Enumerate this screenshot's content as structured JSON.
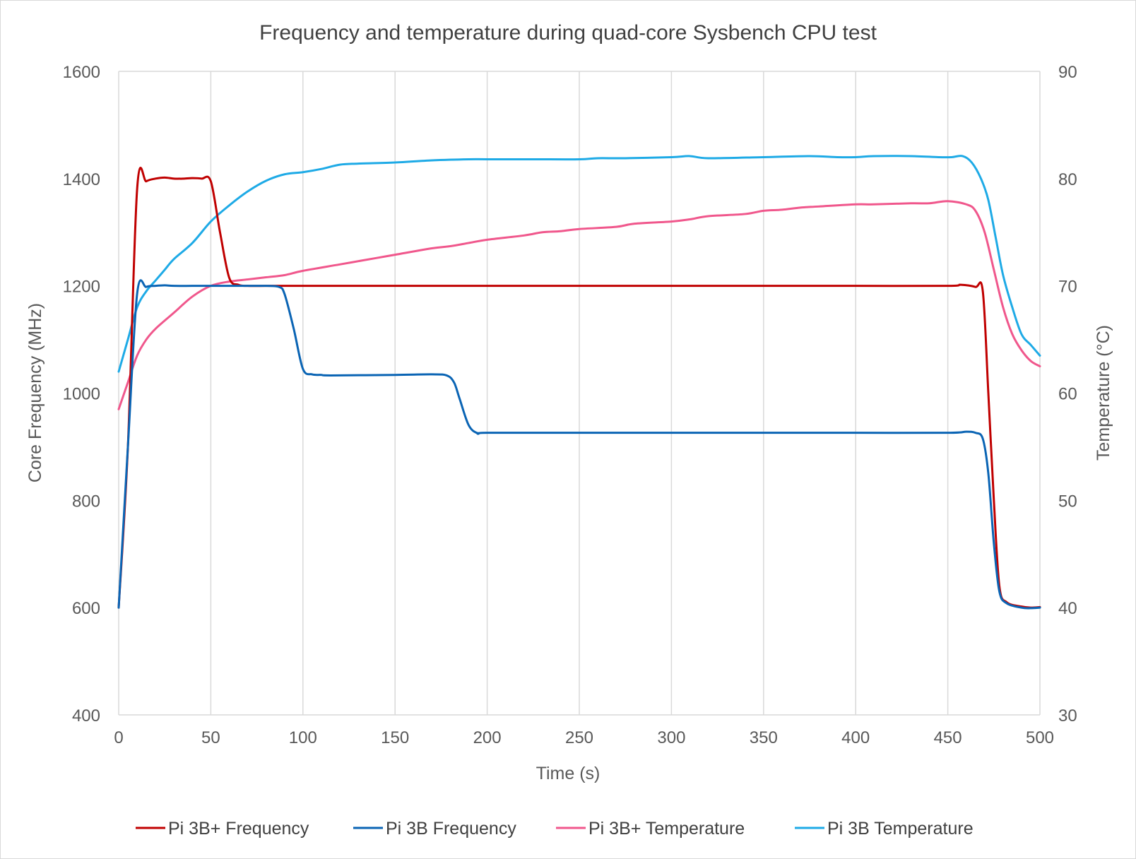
{
  "chart_data": {
    "type": "line",
    "title": "Frequency and temperature during quad-core Sysbench CPU test",
    "xlabel": "Time (s)",
    "ylabel": "Core Frequency (MHz)",
    "y2label": "Temperature (°C)",
    "xlim": [
      0,
      500
    ],
    "ylim": [
      400,
      1600
    ],
    "y2lim": [
      30,
      90
    ],
    "x_ticks": [
      0,
      50,
      100,
      150,
      200,
      250,
      300,
      350,
      400,
      450,
      500
    ],
    "y_ticks": [
      400,
      600,
      800,
      1000,
      1200,
      1400,
      1600
    ],
    "y2_ticks": [
      30,
      40,
      50,
      60,
      70,
      80,
      90
    ],
    "grid": true,
    "legend_position": "bottom",
    "series": [
      {
        "name": "Pi 3B+ Frequency",
        "axis": "left",
        "color": "#c00000",
        "points": [
          [
            0,
            600
          ],
          [
            5,
            900
          ],
          [
            10,
            1380
          ],
          [
            15,
            1395
          ],
          [
            20,
            1400
          ],
          [
            25,
            1402
          ],
          [
            30,
            1400
          ],
          [
            35,
            1400
          ],
          [
            40,
            1401
          ],
          [
            45,
            1400
          ],
          [
            50,
            1395
          ],
          [
            55,
            1300
          ],
          [
            60,
            1215
          ],
          [
            65,
            1202
          ],
          [
            70,
            1200
          ],
          [
            80,
            1200
          ],
          [
            90,
            1200
          ],
          [
            100,
            1200
          ],
          [
            150,
            1200
          ],
          [
            200,
            1200
          ],
          [
            250,
            1200
          ],
          [
            300,
            1200
          ],
          [
            350,
            1200
          ],
          [
            400,
            1200
          ],
          [
            450,
            1200
          ],
          [
            457,
            1202
          ],
          [
            465,
            1198
          ],
          [
            469,
            1190
          ],
          [
            472,
            1000
          ],
          [
            475,
            800
          ],
          [
            478,
            640
          ],
          [
            482,
            610
          ],
          [
            490,
            602
          ],
          [
            495,
            600
          ],
          [
            500,
            601
          ]
        ]
      },
      {
        "name": "Pi 3B Frequency",
        "axis": "left",
        "color": "#0a64b4",
        "points": [
          [
            0,
            600
          ],
          [
            5,
            900
          ],
          [
            10,
            1185
          ],
          [
            15,
            1198
          ],
          [
            20,
            1200
          ],
          [
            25,
            1201
          ],
          [
            30,
            1200
          ],
          [
            40,
            1200
          ],
          [
            50,
            1200
          ],
          [
            60,
            1200
          ],
          [
            70,
            1200
          ],
          [
            80,
            1200
          ],
          [
            87,
            1198
          ],
          [
            90,
            1185
          ],
          [
            95,
            1120
          ],
          [
            100,
            1045
          ],
          [
            105,
            1035
          ],
          [
            110,
            1034
          ],
          [
            115,
            1033
          ],
          [
            150,
            1034
          ],
          [
            170,
            1035
          ],
          [
            178,
            1033
          ],
          [
            182,
            1020
          ],
          [
            185,
            990
          ],
          [
            190,
            940
          ],
          [
            195,
            925
          ],
          [
            200,
            926
          ],
          [
            250,
            926
          ],
          [
            300,
            926
          ],
          [
            350,
            926
          ],
          [
            400,
            926
          ],
          [
            450,
            926
          ],
          [
            460,
            928
          ],
          [
            465,
            926
          ],
          [
            469,
            915
          ],
          [
            472,
            850
          ],
          [
            475,
            720
          ],
          [
            478,
            630
          ],
          [
            482,
            608
          ],
          [
            490,
            600
          ],
          [
            495,
            599
          ],
          [
            500,
            600
          ]
        ]
      },
      {
        "name": "Pi 3B+ Temperature",
        "axis": "right",
        "color": "#f0578c",
        "points": [
          [
            0,
            58.5
          ],
          [
            5,
            61
          ],
          [
            10,
            63.5
          ],
          [
            15,
            65
          ],
          [
            20,
            66
          ],
          [
            30,
            67.5
          ],
          [
            40,
            69
          ],
          [
            50,
            70
          ],
          [
            60,
            70.4
          ],
          [
            70,
            70.6
          ],
          [
            80,
            70.8
          ],
          [
            90,
            71
          ],
          [
            100,
            71.4
          ],
          [
            120,
            72
          ],
          [
            140,
            72.6
          ],
          [
            150,
            72.9
          ],
          [
            170,
            73.5
          ],
          [
            180,
            73.7
          ],
          [
            190,
            74
          ],
          [
            200,
            74.3
          ],
          [
            220,
            74.7
          ],
          [
            230,
            75
          ],
          [
            240,
            75.1
          ],
          [
            250,
            75.3
          ],
          [
            270,
            75.5
          ],
          [
            280,
            75.8
          ],
          [
            300,
            76
          ],
          [
            310,
            76.2
          ],
          [
            320,
            76.5
          ],
          [
            340,
            76.7
          ],
          [
            350,
            77
          ],
          [
            360,
            77.1
          ],
          [
            370,
            77.3
          ],
          [
            380,
            77.4
          ],
          [
            400,
            77.6
          ],
          [
            410,
            77.6
          ],
          [
            430,
            77.7
          ],
          [
            440,
            77.7
          ],
          [
            450,
            77.9
          ],
          [
            460,
            77.6
          ],
          [
            465,
            77
          ],
          [
            470,
            75
          ],
          [
            475,
            71.5
          ],
          [
            480,
            68
          ],
          [
            485,
            65.5
          ],
          [
            490,
            64
          ],
          [
            495,
            63
          ],
          [
            500,
            62.5
          ]
        ]
      },
      {
        "name": "Pi 3B Temperature",
        "axis": "right",
        "color": "#1eaae6",
        "points": [
          [
            0,
            62
          ],
          [
            5,
            65
          ],
          [
            10,
            68
          ],
          [
            15,
            69.5
          ],
          [
            20,
            70.5
          ],
          [
            25,
            71.5
          ],
          [
            30,
            72.5
          ],
          [
            40,
            74
          ],
          [
            50,
            76
          ],
          [
            60,
            77.5
          ],
          [
            70,
            78.8
          ],
          [
            80,
            79.8
          ],
          [
            90,
            80.4
          ],
          [
            100,
            80.6
          ],
          [
            110,
            80.9
          ],
          [
            120,
            81.3
          ],
          [
            130,
            81.4
          ],
          [
            150,
            81.5
          ],
          [
            170,
            81.7
          ],
          [
            190,
            81.8
          ],
          [
            200,
            81.8
          ],
          [
            225,
            81.8
          ],
          [
            250,
            81.8
          ],
          [
            260,
            81.9
          ],
          [
            275,
            81.9
          ],
          [
            300,
            82
          ],
          [
            310,
            82.1
          ],
          [
            320,
            81.9
          ],
          [
            350,
            82
          ],
          [
            375,
            82.1
          ],
          [
            390,
            82
          ],
          [
            400,
            82
          ],
          [
            410,
            82.1
          ],
          [
            430,
            82.1
          ],
          [
            445,
            82
          ],
          [
            452,
            82
          ],
          [
            458,
            82.1
          ],
          [
            463,
            81.5
          ],
          [
            468,
            80
          ],
          [
            472,
            78
          ],
          [
            476,
            74.5
          ],
          [
            480,
            71
          ],
          [
            485,
            68
          ],
          [
            490,
            65.5
          ],
          [
            495,
            64.5
          ],
          [
            500,
            63.5
          ]
        ]
      }
    ]
  }
}
